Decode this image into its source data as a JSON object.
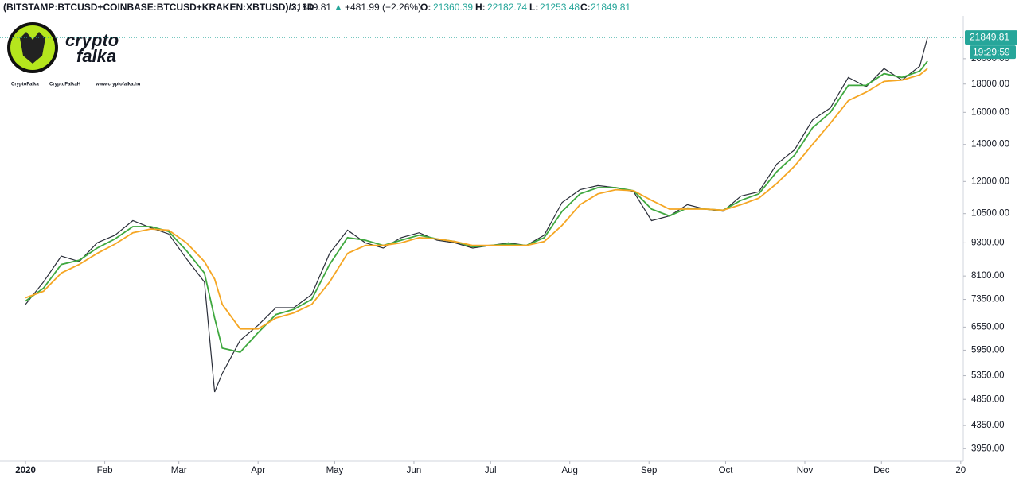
{
  "chart_data": {
    "type": "line",
    "symbol": "(BITSTAMP:BTCUSD+COINBASE:BTCUSD+KRAKEN:XBTUSD)/3, 1D",
    "last_price": 21849.81,
    "change_arrow": "▲",
    "change": "+481.99 (+2.26%)",
    "open_label": "O:",
    "open": 21360.39,
    "high_label": "H:",
    "high": 22182.74,
    "low_label": "L:",
    "low": 21253.48,
    "close_label": "C:",
    "close": 21849.81,
    "countdown": "19:29:59",
    "logo_text": [
      "crypto",
      "falka"
    ],
    "social": [
      "CryptoFalka",
      "CryptoFalkaH",
      "www.cryptofalka.hu"
    ],
    "log_scale": true,
    "xlim": [
      -10,
      367
    ],
    "xticks": [
      {
        "value": 0,
        "label": "2020"
      },
      {
        "value": 31,
        "label": "Feb"
      },
      {
        "value": 60,
        "label": "Mar"
      },
      {
        "value": 91,
        "label": "Apr"
      },
      {
        "value": 121,
        "label": "May"
      },
      {
        "value": 152,
        "label": "Jun"
      },
      {
        "value": 182,
        "label": "Jul"
      },
      {
        "value": 213,
        "label": "Aug"
      },
      {
        "value": 244,
        "label": "Sep"
      },
      {
        "value": 274,
        "label": "Oct"
      },
      {
        "value": 305,
        "label": "Nov"
      },
      {
        "value": 335,
        "label": "Dec"
      },
      {
        "value": 366,
        "label": "20"
      }
    ],
    "ylim": [
      3750,
      23900
    ],
    "yticks": [
      {
        "value": 3950,
        "label": "3950.00"
      },
      {
        "value": 4350,
        "label": "4350.00"
      },
      {
        "value": 4850,
        "label": "4850.00"
      },
      {
        "value": 5350,
        "label": "5350.00"
      },
      {
        "value": 5950,
        "label": "5950.00"
      },
      {
        "value": 6550,
        "label": "6550.00"
      },
      {
        "value": 7350,
        "label": "7350.00"
      },
      {
        "value": 8100,
        "label": "8100.00"
      },
      {
        "value": 9300,
        "label": "9300.00"
      },
      {
        "value": 10500,
        "label": "10500.00"
      },
      {
        "value": 12000,
        "label": "12000.00"
      },
      {
        "value": 14000,
        "label": "14000.00"
      },
      {
        "value": 16000,
        "label": "16000.00"
      },
      {
        "value": 18000,
        "label": "18000.00"
      },
      {
        "value": 20000,
        "label": "20000.00"
      }
    ],
    "x": [
      0,
      7,
      14,
      21,
      28,
      35,
      42,
      49,
      56,
      63,
      70,
      74,
      77,
      84,
      91,
      98,
      105,
      112,
      119,
      126,
      133,
      140,
      147,
      154,
      161,
      168,
      175,
      182,
      189,
      196,
      203,
      210,
      217,
      224,
      231,
      238,
      245,
      252,
      259,
      266,
      273,
      280,
      287,
      294,
      301,
      308,
      315,
      322,
      329,
      336,
      343,
      350,
      353
    ],
    "series": [
      {
        "color": "#2a2e39",
        "values": [
          7200,
          7900,
          8800,
          8600,
          9300,
          9600,
          10200,
          9900,
          9650,
          8700,
          7900,
          5000,
          5400,
          6200,
          6600,
          7100,
          7100,
          7500,
          8900,
          9800,
          9300,
          9100,
          9500,
          9700,
          9400,
          9300,
          9100,
          9200,
          9300,
          9200,
          9600,
          11000,
          11600,
          11800,
          11700,
          11500,
          10200,
          10400,
          10900,
          10700,
          10600,
          11300,
          11500,
          12900,
          13700,
          15500,
          16300,
          18500,
          17800,
          19200,
          18300,
          19400,
          21849.81
        ]
      },
      {
        "color": "#3fa83f",
        "values": [
          7300,
          7700,
          8500,
          8650,
          9100,
          9450,
          9950,
          9950,
          9750,
          9000,
          8200,
          6800,
          6000,
          5900,
          6400,
          6900,
          7050,
          7350,
          8500,
          9500,
          9400,
          9200,
          9400,
          9600,
          9450,
          9350,
          9150,
          9200,
          9250,
          9200,
          9500,
          10600,
          11400,
          11700,
          11700,
          11550,
          10700,
          10400,
          10750,
          10700,
          10650,
          11100,
          11400,
          12500,
          13400,
          15000,
          16000,
          17900,
          17900,
          18800,
          18500,
          19000,
          19800
        ]
      },
      {
        "color": "#f5a623",
        "values": [
          7400,
          7600,
          8200,
          8500,
          8900,
          9250,
          9700,
          9850,
          9800,
          9300,
          8600,
          8000,
          7200,
          6500,
          6500,
          6800,
          6950,
          7200,
          7900,
          8900,
          9200,
          9200,
          9300,
          9500,
          9450,
          9350,
          9200,
          9200,
          9200,
          9200,
          9350,
          10000,
          10900,
          11400,
          11600,
          11550,
          11100,
          10700,
          10700,
          10700,
          10650,
          10900,
          11200,
          11900,
          12800,
          14000,
          15300,
          16800,
          17400,
          18200,
          18300,
          18700,
          19200
        ]
      }
    ]
  }
}
